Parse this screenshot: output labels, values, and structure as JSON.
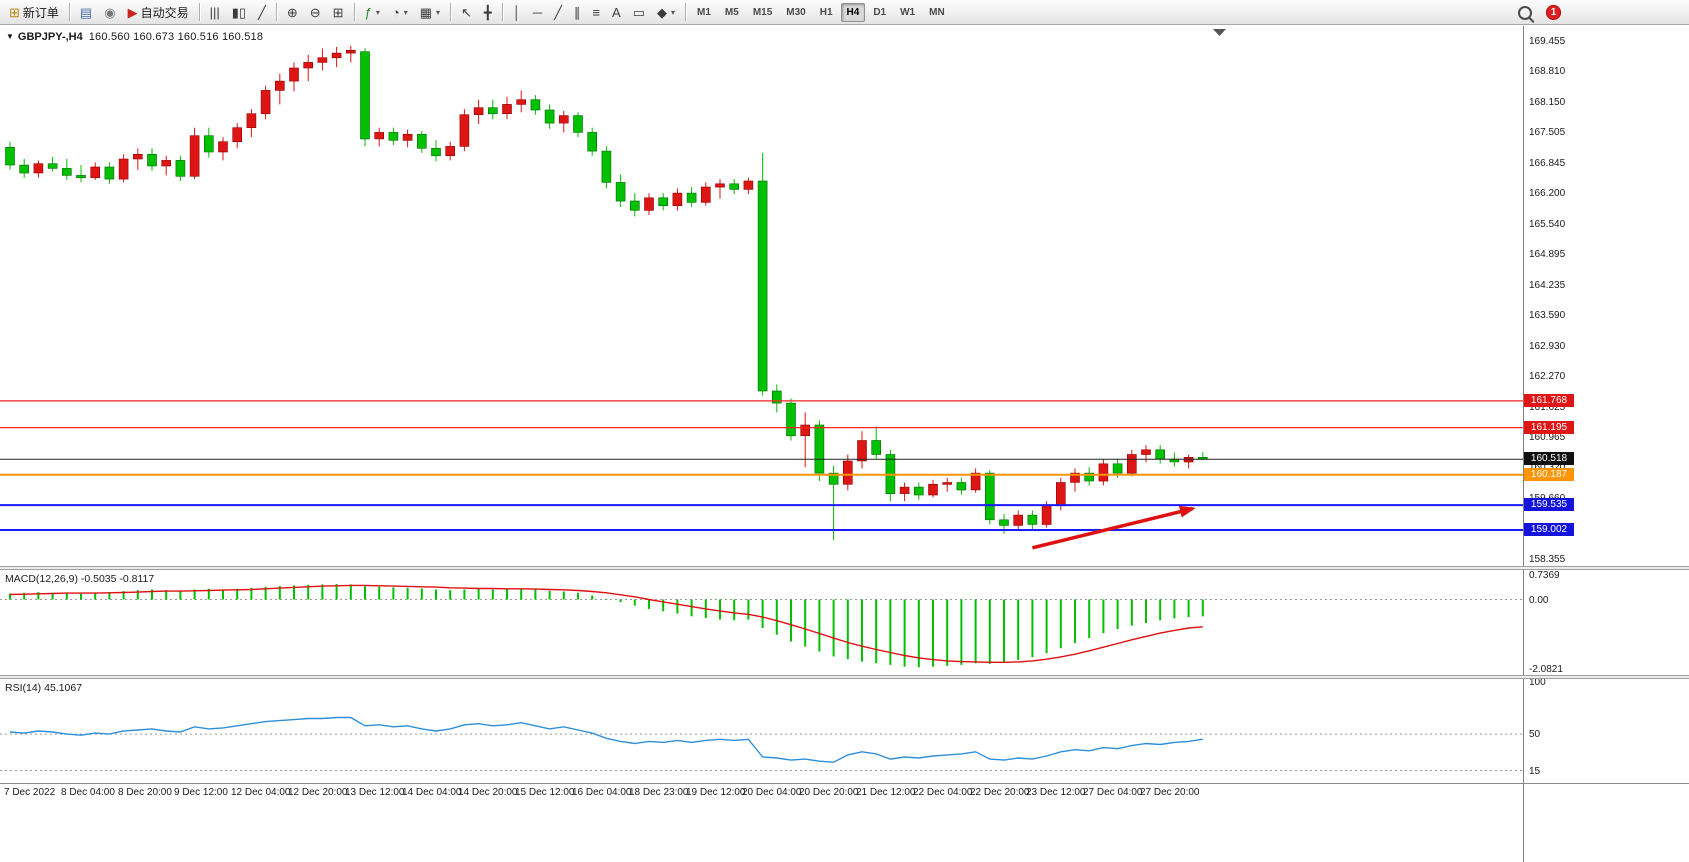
{
  "colors": {
    "up": "#dd1515",
    "down": "#00c000",
    "up_edge": "#8f0000",
    "down_edge": "#006800",
    "macd_hist": "#00c000",
    "macd_signal": "#e01010",
    "rsi_line": "#2f8fd8",
    "arrow": "#dd1111",
    "tag_red": "#e01515",
    "tag_black": "#111111",
    "tag_orange": "#ff9500",
    "tag_blue": "#1414dd"
  },
  "toolbar": {
    "groups": [
      {
        "items": [
          {
            "name": "new-order-button",
            "glyph": "⊞",
            "color": "#b8860b",
            "label": "新订单"
          }
        ]
      },
      {
        "items": [
          {
            "name": "profiles-button",
            "glyph": "▤",
            "color": "#4a6fa5"
          },
          {
            "name": "signals-button",
            "glyph": "◉",
            "color": "#777777"
          },
          {
            "name": "autotrade-button",
            "glyph": "▶",
            "color": "#cc2222",
            "label": "自动交易"
          }
        ]
      },
      {
        "items": [
          {
            "name": "bar-chart-button",
            "glyph": "|||",
            "color": "#3c3c3c"
          },
          {
            "name": "candlestick-chart-button",
            "glyph": "▮▯",
            "color": "#3c3c3c"
          },
          {
            "name": "line-chart-button",
            "glyph": "╱",
            "color": "#3c3c3c"
          }
        ]
      },
      {
        "items": [
          {
            "name": "zoom-in-button",
            "glyph": "⊕",
            "color": "#3c3c3c"
          },
          {
            "name": "zoom-out-button",
            "glyph": "⊖",
            "color": "#3c3c3c"
          },
          {
            "name": "tile-windows-button",
            "glyph": "⊞",
            "color": "#3c3c3c"
          }
        ]
      },
      {
        "items": [
          {
            "name": "indicators-button",
            "glyph": "ƒ",
            "color": "#2e8b2e",
            "caret": true
          },
          {
            "name": "periods-button",
            "glyph": "◔",
            "color": "#3c3c3c",
            "caret": true
          },
          {
            "name": "templates-button",
            "glyph": "▦",
            "color": "#3c3c3c",
            "caret": true
          }
        ]
      },
      {
        "items": [
          {
            "name": "cursor-button",
            "glyph": "↖",
            "color": "#3c3c3c"
          },
          {
            "name": "crosshair-button",
            "glyph": "╋",
            "color": "#3c3c3c"
          }
        ]
      },
      {
        "items": [
          {
            "name": "vertical-line-button",
            "glyph": "│",
            "color": "#3c3c3c"
          },
          {
            "name": "horizontal-line-button",
            "glyph": "─",
            "color": "#3c3c3c"
          },
          {
            "name": "trendline-button",
            "glyph": "╱",
            "color": "#3c3c3c"
          },
          {
            "name": "equidistant-channel-button",
            "glyph": "∥",
            "color": "#3c3c3c"
          },
          {
            "name": "fibonacci-button",
            "glyph": "≡",
            "color": "#3c3c3c"
          },
          {
            "name": "text-button",
            "glyph": "A",
            "color": "#3c3c3c"
          },
          {
            "name": "text-label-button",
            "glyph": "▭",
            "color": "#3c3c3c"
          },
          {
            "name": "arrows-button",
            "glyph": "◆",
            "color": "#3c3c3c",
            "caret": true
          }
        ]
      }
    ],
    "timeframes": {
      "items": [
        "M1",
        "M5",
        "M15",
        "M30",
        "H1",
        "H4",
        "D1",
        "W1",
        "MN"
      ],
      "active": "H4"
    },
    "right": {
      "badge": "1"
    }
  },
  "chart": {
    "header": {
      "collapse_glyph": "▼",
      "symbol": "GBPJPY-,H4",
      "ohlc": "160.560 160.673 160.516 160.518"
    },
    "price_tags": [
      {
        "text": "161.768",
        "bg": "#e01515"
      },
      {
        "text": "161.195",
        "bg": "#e01515"
      },
      {
        "text": "160.518",
        "bg": "#111111"
      },
      {
        "text": "160.187",
        "bg": "#ff9500"
      },
      {
        "text": "159.535",
        "bg": "#1414dd"
      },
      {
        "text": "159.002",
        "bg": "#1414dd"
      }
    ],
    "hlines": [
      {
        "price": 161.768,
        "color": "#ff2222",
        "width": 1.2
      },
      {
        "price": 161.195,
        "color": "#ff2222",
        "width": 1.2
      },
      {
        "price": 160.518,
        "color": "#222222",
        "width": 1
      },
      {
        "price": 160.187,
        "color": "#ff9500",
        "width": 2
      },
      {
        "price": 159.535,
        "color": "#1a1aff",
        "width": 2
      },
      {
        "price": 159.002,
        "color": "#1a1aff",
        "width": 2
      }
    ]
  },
  "annotations": [
    {
      "type": "arrow",
      "name": "trend-arrow",
      "color": "#dd1111",
      "from": {
        "bar": 72,
        "price": 158.62
      },
      "to": {
        "bar": 83.3,
        "price": 159.46
      }
    }
  ],
  "panels": {
    "macd": {
      "title": "MACD(12,26,9)",
      "values": "-0.5035 -0.8117",
      "axis": [
        "0.7369",
        "0.00",
        "-2.0821"
      ]
    },
    "rsi": {
      "title": "RSI(14)",
      "values": "45.1067",
      "axis": [
        "100",
        "50",
        "15"
      ]
    }
  },
  "chart_data": [
    {
      "type": "candlestick",
      "name": "GBPJPY- H4",
      "ylim": [
        158.23,
        169.8
      ],
      "y_ticks": [
        "169.455",
        "168.810",
        "168.150",
        "167.505",
        "166.845",
        "166.200",
        "165.540",
        "164.895",
        "164.235",
        "163.590",
        "162.930",
        "162.270",
        "161.625",
        "160.965",
        "160.320",
        "159.660",
        "159.000",
        "158.355"
      ],
      "label_step": 4,
      "time_labels": [
        "7 Dec 2022",
        "8 Dec 04:00",
        "8 Dec 20:00",
        "9 Dec 12:00",
        "12 Dec 04:00",
        "12 Dec 20:00",
        "13 Dec 12:00",
        "14 Dec 04:00",
        "14 Dec 20:00",
        "15 Dec 12:00",
        "16 Dec 04:00",
        "18 Dec 23:00",
        "19 Dec 12:00",
        "20 Dec 04:00",
        "20 Dec 20:00",
        "21 Dec 12:00",
        "22 Dec 04:00",
        "22 Dec 20:00",
        "23 Dec 12:00",
        "27 Dec 04:00",
        "27 Dec 20:00"
      ],
      "ohlc": [
        [
          167.2,
          167.32,
          166.72,
          166.82
        ],
        [
          166.82,
          166.95,
          166.55,
          166.65
        ],
        [
          166.65,
          166.92,
          166.55,
          166.85
        ],
        [
          166.85,
          167.0,
          166.68,
          166.75
        ],
        [
          166.75,
          166.95,
          166.5,
          166.6
        ],
        [
          166.6,
          166.82,
          166.45,
          166.55
        ],
        [
          166.55,
          166.88,
          166.5,
          166.78
        ],
        [
          166.78,
          166.88,
          166.42,
          166.52
        ],
        [
          166.52,
          167.05,
          166.45,
          166.95
        ],
        [
          166.95,
          167.18,
          166.72,
          167.05
        ],
        [
          167.05,
          167.18,
          166.7,
          166.8
        ],
        [
          166.8,
          167.02,
          166.6,
          166.92
        ],
        [
          166.92,
          167.02,
          166.48,
          166.58
        ],
        [
          166.58,
          167.62,
          166.52,
          167.45
        ],
        [
          167.45,
          167.62,
          166.98,
          167.1
        ],
        [
          167.1,
          167.42,
          166.92,
          167.32
        ],
        [
          167.32,
          167.72,
          167.18,
          167.62
        ],
        [
          167.62,
          168.02,
          167.42,
          167.92
        ],
        [
          167.92,
          168.52,
          167.8,
          168.42
        ],
        [
          168.42,
          168.78,
          168.12,
          168.62
        ],
        [
          168.62,
          169.02,
          168.4,
          168.9
        ],
        [
          168.9,
          169.18,
          168.62,
          169.02
        ],
        [
          169.02,
          169.32,
          168.85,
          169.12
        ],
        [
          169.12,
          169.35,
          168.92,
          169.22
        ],
        [
          169.22,
          169.38,
          169.02,
          169.28
        ],
        [
          169.25,
          169.32,
          167.22,
          167.38
        ],
        [
          167.38,
          167.62,
          167.22,
          167.52
        ],
        [
          167.52,
          167.62,
          167.25,
          167.35
        ],
        [
          167.35,
          167.58,
          167.2,
          167.48
        ],
        [
          167.48,
          167.55,
          167.08,
          167.18
        ],
        [
          167.18,
          167.35,
          166.9,
          167.02
        ],
        [
          167.02,
          167.32,
          166.92,
          167.22
        ],
        [
          167.22,
          168.02,
          167.12,
          167.9
        ],
        [
          167.9,
          168.22,
          167.7,
          168.05
        ],
        [
          168.05,
          168.22,
          167.8,
          167.92
        ],
        [
          167.92,
          168.28,
          167.8,
          168.12
        ],
        [
          168.12,
          168.42,
          167.95,
          168.22
        ],
        [
          168.22,
          168.32,
          167.9,
          168.0
        ],
        [
          168.0,
          168.12,
          167.6,
          167.72
        ],
        [
          167.72,
          167.98,
          167.52,
          167.88
        ],
        [
          167.88,
          167.95,
          167.42,
          167.52
        ],
        [
          167.52,
          167.62,
          167.02,
          167.12
        ],
        [
          167.12,
          167.22,
          166.32,
          166.45
        ],
        [
          166.45,
          166.62,
          165.92,
          166.05
        ],
        [
          166.05,
          166.22,
          165.72,
          165.85
        ],
        [
          165.85,
          166.22,
          165.75,
          166.12
        ],
        [
          166.12,
          166.22,
          165.85,
          165.95
        ],
        [
          165.95,
          166.32,
          165.85,
          166.22
        ],
        [
          166.22,
          166.35,
          165.92,
          166.02
        ],
        [
          166.02,
          166.45,
          165.95,
          166.35
        ],
        [
          166.35,
          166.52,
          166.1,
          166.42
        ],
        [
          166.42,
          166.52,
          166.2,
          166.3
        ],
        [
          166.3,
          166.55,
          166.2,
          166.48
        ],
        [
          166.48,
          167.08,
          161.88,
          161.98
        ],
        [
          161.98,
          162.12,
          161.52,
          161.72
        ],
        [
          161.72,
          161.82,
          160.92,
          161.02
        ],
        [
          161.02,
          161.52,
          160.35,
          161.25
        ],
        [
          161.25,
          161.35,
          160.05,
          160.22
        ],
        [
          160.22,
          160.38,
          158.78,
          159.98
        ],
        [
          159.98,
          160.62,
          159.85,
          160.48
        ],
        [
          160.48,
          161.12,
          160.32,
          160.92
        ],
        [
          160.92,
          161.22,
          160.52,
          160.62
        ],
        [
          160.62,
          160.72,
          159.62,
          159.78
        ],
        [
          159.78,
          160.02,
          159.62,
          159.92
        ],
        [
          159.92,
          160.02,
          159.65,
          159.75
        ],
        [
          159.75,
          160.08,
          159.7,
          159.98
        ],
        [
          159.98,
          160.12,
          159.82,
          160.02
        ],
        [
          160.02,
          160.12,
          159.76,
          159.86
        ],
        [
          159.86,
          160.32,
          159.8,
          160.22
        ],
        [
          160.22,
          160.28,
          159.12,
          159.22
        ],
        [
          159.22,
          159.35,
          158.92,
          159.1
        ],
        [
          159.1,
          159.42,
          159.0,
          159.32
        ],
        [
          159.32,
          159.42,
          159.02,
          159.12
        ],
        [
          159.12,
          159.62,
          159.05,
          159.52
        ],
        [
          159.52,
          160.12,
          159.42,
          160.02
        ],
        [
          160.02,
          160.32,
          159.82,
          160.22
        ],
        [
          160.22,
          160.35,
          159.95,
          160.05
        ],
        [
          160.05,
          160.52,
          159.96,
          160.42
        ],
        [
          160.42,
          160.52,
          160.12,
          160.22
        ],
        [
          160.22,
          160.72,
          160.15,
          160.62
        ],
        [
          160.62,
          160.82,
          160.45,
          160.72
        ],
        [
          160.72,
          160.82,
          160.42,
          160.52
        ],
        [
          160.52,
          160.66,
          160.36,
          160.46
        ],
        [
          160.46,
          160.62,
          160.32,
          160.56
        ],
        [
          160.56,
          160.673,
          160.516,
          160.518
        ]
      ]
    },
    {
      "type": "bar",
      "name": "MACD(12,26,9)",
      "ylim": [
        -2.0821,
        0.7369
      ],
      "values": [
        0.18,
        0.2,
        0.22,
        0.2,
        0.19,
        0.17,
        0.2,
        0.22,
        0.25,
        0.28,
        0.3,
        0.28,
        0.26,
        0.3,
        0.32,
        0.3,
        0.32,
        0.35,
        0.38,
        0.4,
        0.42,
        0.44,
        0.45,
        0.46,
        0.45,
        0.4,
        0.38,
        0.36,
        0.35,
        0.33,
        0.3,
        0.28,
        0.3,
        0.32,
        0.3,
        0.3,
        0.32,
        0.3,
        0.26,
        0.24,
        0.2,
        0.12,
        0.02,
        -0.08,
        -0.18,
        -0.28,
        -0.35,
        -0.42,
        -0.5,
        -0.55,
        -0.6,
        -0.62,
        -0.6,
        -0.85,
        -1.05,
        -1.25,
        -1.4,
        -1.55,
        -1.7,
        -1.78,
        -1.85,
        -1.9,
        -1.95,
        -2.0,
        -2.02,
        -2.0,
        -1.98,
        -1.95,
        -1.9,
        -1.92,
        -1.88,
        -1.8,
        -1.72,
        -1.6,
        -1.45,
        -1.3,
        -1.15,
        -1.0,
        -0.88,
        -0.78,
        -0.7,
        -0.62,
        -0.56,
        -0.52,
        -0.5035
      ],
      "signal": [
        0.15,
        0.16,
        0.17,
        0.18,
        0.19,
        0.19,
        0.19,
        0.2,
        0.21,
        0.22,
        0.24,
        0.25,
        0.25,
        0.26,
        0.27,
        0.28,
        0.29,
        0.3,
        0.32,
        0.34,
        0.36,
        0.38,
        0.4,
        0.41,
        0.42,
        0.42,
        0.41,
        0.4,
        0.39,
        0.38,
        0.37,
        0.35,
        0.34,
        0.33,
        0.33,
        0.32,
        0.32,
        0.31,
        0.3,
        0.29,
        0.27,
        0.24,
        0.2,
        0.14,
        0.08,
        0.0,
        -0.07,
        -0.14,
        -0.21,
        -0.28,
        -0.34,
        -0.4,
        -0.44,
        -0.52,
        -0.63,
        -0.75,
        -0.88,
        -1.01,
        -1.15,
        -1.28,
        -1.39,
        -1.49,
        -1.58,
        -1.67,
        -1.74,
        -1.79,
        -1.83,
        -1.85,
        -1.86,
        -1.87,
        -1.87,
        -1.86,
        -1.83,
        -1.78,
        -1.71,
        -1.63,
        -1.53,
        -1.42,
        -1.31,
        -1.2,
        -1.1,
        -1.0,
        -0.92,
        -0.85,
        -0.8117
      ]
    },
    {
      "type": "line",
      "name": "RSI(14)",
      "ylim": [
        0,
        100
      ],
      "levels": [
        50,
        15
      ],
      "values": [
        52,
        51,
        53,
        52,
        50,
        49,
        51,
        50,
        53,
        54,
        55,
        53,
        52,
        57,
        55,
        56,
        58,
        60,
        62,
        63,
        64,
        65,
        65,
        66,
        66,
        58,
        59,
        57,
        58,
        55,
        53,
        55,
        59,
        60,
        58,
        59,
        61,
        58,
        55,
        57,
        54,
        51,
        46,
        43,
        41,
        43,
        42,
        44,
        42,
        44,
        45,
        44,
        45,
        28,
        27,
        25,
        26,
        24,
        23,
        30,
        33,
        31,
        26,
        28,
        27,
        29,
        30,
        31,
        33,
        26,
        25,
        27,
        26,
        29,
        33,
        35,
        34,
        37,
        36,
        39,
        41,
        40,
        42,
        43,
        45.1
      ]
    }
  ]
}
